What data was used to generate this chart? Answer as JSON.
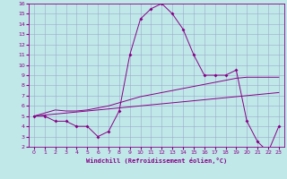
{
  "xlabel": "Windchill (Refroidissement éolien,°C)",
  "xlim": [
    -0.5,
    23.5
  ],
  "ylim": [
    2,
    16
  ],
  "yticks": [
    2,
    3,
    4,
    5,
    6,
    7,
    8,
    9,
    10,
    11,
    12,
    13,
    14,
    15,
    16
  ],
  "xticks": [
    0,
    1,
    2,
    3,
    4,
    5,
    6,
    7,
    8,
    9,
    10,
    11,
    12,
    13,
    14,
    15,
    16,
    17,
    18,
    19,
    20,
    21,
    22,
    23
  ],
  "bg_color": "#c0e8e8",
  "line_color": "#880088",
  "grid_color": "#99aacc",
  "windchill": [
    5.0,
    5.0,
    4.5,
    4.5,
    4.0,
    4.0,
    3.0,
    3.5,
    5.5,
    11.0,
    14.5,
    15.5,
    16.0,
    15.0,
    13.5,
    11.0,
    9.0,
    9.0,
    9.0,
    9.5,
    4.5,
    2.5,
    1.5,
    4.0
  ],
  "trend1": [
    5.0,
    5.3,
    5.6,
    5.5,
    5.5,
    5.6,
    5.8,
    6.0,
    6.3,
    6.6,
    6.9,
    7.1,
    7.3,
    7.5,
    7.7,
    7.9,
    8.1,
    8.3,
    8.5,
    8.7,
    8.8,
    8.8,
    8.8,
    8.8
  ],
  "trend2": [
    5.0,
    5.1,
    5.2,
    5.3,
    5.4,
    5.5,
    5.6,
    5.7,
    5.8,
    5.9,
    6.0,
    6.1,
    6.2,
    6.3,
    6.4,
    6.5,
    6.6,
    6.7,
    6.8,
    6.9,
    7.0,
    7.1,
    7.2,
    7.3
  ]
}
